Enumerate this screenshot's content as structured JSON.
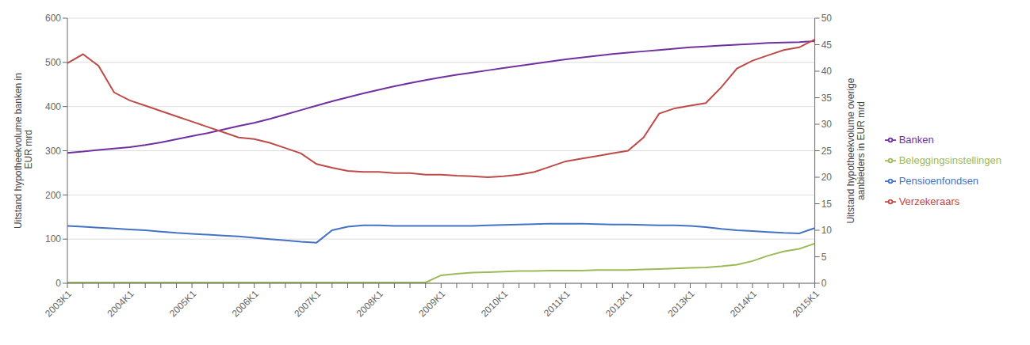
{
  "chart_data": {
    "type": "line",
    "ylabel": "Uitstand hypotheekvolume banken in\n EUR mrd",
    "y2label": "Uitstand hypotheekvolume overige\naanbieders in EUR mrd",
    "categories": [
      "2003K1",
      null,
      null,
      null,
      "2004K1",
      null,
      null,
      null,
      "2005K1",
      null,
      null,
      null,
      "2006K1",
      null,
      null,
      null,
      "2007K1",
      null,
      null,
      null,
      "2008K1",
      null,
      null,
      null,
      "2009K1",
      null,
      null,
      null,
      "2010K1",
      null,
      null,
      null,
      "2011K1",
      null,
      null,
      null,
      "2012K1",
      null,
      null,
      null,
      "2013K1",
      null,
      null,
      null,
      "2014K1",
      null,
      null,
      null,
      "2015K1"
    ],
    "ylim": [
      0,
      600
    ],
    "yticks": [
      0,
      100,
      200,
      300,
      400,
      500,
      600
    ],
    "y2lim": [
      0,
      50
    ],
    "y2ticks": [
      0,
      5,
      10,
      15,
      20,
      25,
      30,
      35,
      40,
      45,
      50
    ],
    "grid": true,
    "legend": "right",
    "series": [
      {
        "name": "Banken",
        "color": "#7030A0",
        "values": [
          295,
          298,
          302,
          305,
          308,
          313,
          319,
          326,
          333,
          340,
          348,
          356,
          363,
          372,
          382,
          392,
          402,
          412,
          421,
          430,
          438,
          446,
          453,
          460,
          466,
          472,
          477,
          482,
          487,
          492,
          497,
          502,
          507,
          511,
          515,
          519,
          522,
          525,
          528,
          531,
          534,
          536,
          538,
          540,
          542,
          544,
          545,
          546,
          548
        ]
      },
      {
        "name": "Pensioenfondsen",
        "color": "#4472C4",
        "values": [
          130,
          128,
          126,
          124,
          122,
          120,
          117,
          114,
          112,
          110,
          108,
          106,
          103,
          100,
          97,
          94,
          92,
          120,
          128,
          131,
          131,
          130,
          130,
          130,
          130,
          130,
          130,
          131,
          132,
          133,
          134,
          135,
          135,
          135,
          134,
          133,
          133,
          132,
          131,
          131,
          130,
          127,
          123,
          120,
          118,
          116,
          114,
          113,
          125
        ]
      },
      {
        "name": "Verzekeraars",
        "color": "#BE4B48",
        "axis": "y2",
        "values": [
          41.5,
          43.2,
          41.0,
          36.0,
          34.5,
          33.5,
          32.5,
          31.5,
          30.5,
          29.5,
          28.5,
          27.5,
          27.2,
          26.5,
          25.5,
          24.5,
          22.5,
          21.8,
          21.2,
          21.0,
          21.0,
          20.8,
          20.8,
          20.5,
          20.5,
          20.3,
          20.2,
          20.0,
          20.2,
          20.5,
          21.0,
          22.0,
          23.0,
          23.5,
          24.0,
          24.5,
          25.0,
          27.5,
          32.0,
          33.0,
          33.5,
          34.0,
          37.0,
          40.5,
          42.0,
          43.0,
          44.0,
          44.5,
          46.0
        ]
      },
      {
        "name": "Beleggingsinstellingen",
        "color": "#9BBB59",
        "axis": "y2",
        "values": [
          0.15,
          0.15,
          0.15,
          0.15,
          0.15,
          0.15,
          0.15,
          0.15,
          0.15,
          0.15,
          0.15,
          0.15,
          0.15,
          0.15,
          0.15,
          0.15,
          0.15,
          0.15,
          0.15,
          0.15,
          0.15,
          0.15,
          0.15,
          0.15,
          1.5,
          1.8,
          2.0,
          2.1,
          2.2,
          2.3,
          2.3,
          2.4,
          2.4,
          2.4,
          2.5,
          2.5,
          2.5,
          2.6,
          2.7,
          2.8,
          2.9,
          3.0,
          3.2,
          3.5,
          4.2,
          5.2,
          6.0,
          6.5,
          7.5
        ]
      }
    ]
  }
}
